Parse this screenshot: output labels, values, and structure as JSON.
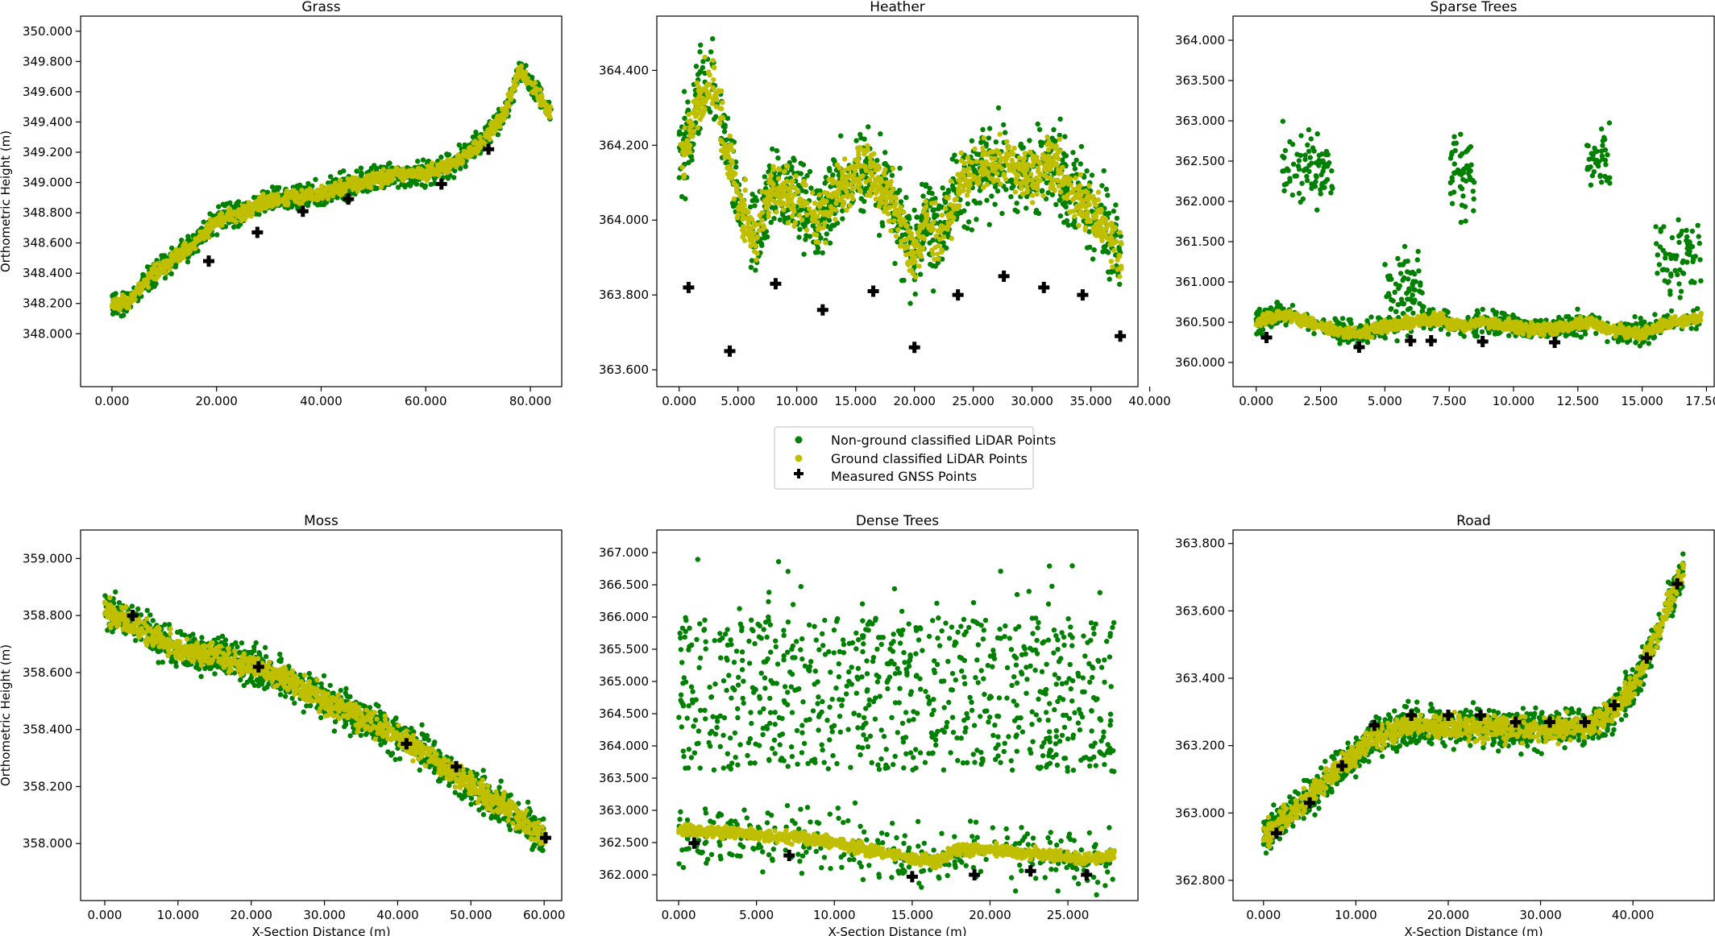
{
  "figure": {
    "legend": [
      {
        "label": "Non-ground classified LiDAR Points",
        "color": "#008000",
        "marker": "dot"
      },
      {
        "label": "Ground classified LiDAR Points",
        "color": "#bfbf00",
        "marker": "dot"
      },
      {
        "label": "Measured GNSS Points",
        "color": "#000000",
        "marker": "plus"
      }
    ]
  },
  "chart_data": [
    {
      "type": "scatter",
      "title": "Grass",
      "xlabel": "",
      "ylabel": "Orthometric Height (m)",
      "xlim": [
        -6,
        86
      ],
      "ylim": [
        347.65,
        350.1
      ],
      "xticks": [
        0,
        20,
        40,
        60,
        80
      ],
      "xtick_labels": [
        "0.000",
        "20.000",
        "40.000",
        "60.000",
        "80.000"
      ],
      "yticks": [
        348.0,
        348.2,
        348.4,
        348.6,
        348.8,
        349.0,
        349.2,
        349.4,
        349.6,
        349.8,
        350.0
      ],
      "ytick_labels": [
        "348.000",
        "348.200",
        "348.400",
        "348.600",
        "348.800",
        "349.000",
        "349.200",
        "349.400",
        "349.600",
        "349.800",
        "350.000"
      ],
      "ground_profile": [
        [
          0,
          348.2
        ],
        [
          3,
          348.2
        ],
        [
          8,
          348.4
        ],
        [
          12,
          348.5
        ],
        [
          16,
          348.6
        ],
        [
          20,
          348.75
        ],
        [
          25,
          348.8
        ],
        [
          30,
          348.88
        ],
        [
          35,
          348.9
        ],
        [
          40,
          348.92
        ],
        [
          45,
          348.98
        ],
        [
          50,
          349.02
        ],
        [
          55,
          349.05
        ],
        [
          60,
          349.06
        ],
        [
          65,
          349.12
        ],
        [
          70,
          349.25
        ],
        [
          75,
          349.45
        ],
        [
          78,
          349.75
        ],
        [
          82,
          349.55
        ],
        [
          84,
          349.45
        ]
      ],
      "ground_spread": 0.08,
      "nonground_spread": 0.14,
      "gnss_points": [
        [
          18.5,
          348.48
        ],
        [
          27.8,
          348.67
        ],
        [
          36.5,
          348.81
        ],
        [
          45.2,
          348.89
        ],
        [
          63,
          348.99
        ],
        [
          72,
          349.22
        ]
      ]
    },
    {
      "type": "scatter",
      "title": "Heather",
      "xlabel": "",
      "ylabel": "",
      "xlim": [
        -1.9,
        39.0
      ],
      "ylim": [
        363.555,
        364.545
      ],
      "xticks": [
        0,
        5,
        10,
        15,
        20,
        25,
        30,
        35,
        40
      ],
      "xtick_labels": [
        "0.000",
        "5.000",
        "10.000",
        "15.000",
        "20.000",
        "25.000",
        "30.000",
        "35.000",
        "40.000"
      ],
      "yticks": [
        363.6,
        363.8,
        364.0,
        364.2,
        364.4
      ],
      "ytick_labels": [
        "363.600",
        "363.800",
        "364.000",
        "364.200",
        "364.400"
      ],
      "ground_profile": [
        [
          0,
          364.15
        ],
        [
          1.5,
          364.3
        ],
        [
          2.8,
          364.38
        ],
        [
          4,
          364.2
        ],
        [
          5,
          364.05
        ],
        [
          6.5,
          363.95
        ],
        [
          8,
          364.1
        ],
        [
          10,
          364.05
        ],
        [
          12,
          364.0
        ],
        [
          14,
          364.1
        ],
        [
          16,
          364.15
        ],
        [
          18,
          364.05
        ],
        [
          20,
          363.9
        ],
        [
          21,
          364.0
        ],
        [
          22,
          363.95
        ],
        [
          24,
          364.1
        ],
        [
          26,
          364.15
        ],
        [
          28,
          364.15
        ],
        [
          30,
          364.12
        ],
        [
          32,
          364.15
        ],
        [
          34,
          364.05
        ],
        [
          36,
          364.0
        ],
        [
          37.6,
          363.9
        ]
      ],
      "ground_spread": 0.12,
      "nonground_spread": 0.2,
      "gnss_points": [
        [
          0.8,
          363.82
        ],
        [
          4.3,
          363.65
        ],
        [
          8.2,
          363.83
        ],
        [
          12.2,
          363.76
        ],
        [
          16.5,
          363.81
        ],
        [
          20,
          363.66
        ],
        [
          23.7,
          363.8
        ],
        [
          27.6,
          363.85
        ],
        [
          31,
          363.82
        ],
        [
          34.3,
          363.8
        ],
        [
          37.5,
          363.69
        ]
      ]
    },
    {
      "type": "scatter",
      "title": "Sparse Trees",
      "xlabel": "",
      "ylabel": "",
      "xlim": [
        -0.9,
        17.8
      ],
      "ylim": [
        359.7,
        364.3
      ],
      "xticks": [
        0,
        2.5,
        5,
        7.5,
        10,
        12.5,
        15,
        17.5
      ],
      "xtick_labels": [
        "0.000",
        "2.500",
        "5.000",
        "7.500",
        "10.000",
        "12.500",
        "15.000",
        "17.500"
      ],
      "yticks": [
        360.0,
        360.5,
        361.0,
        361.5,
        362.0,
        362.5,
        363.0,
        363.5,
        364.0
      ],
      "ytick_labels": [
        "360.000",
        "360.500",
        "361.000",
        "361.500",
        "362.000",
        "362.500",
        "363.000",
        "363.500",
        "364.000"
      ],
      "ground_profile": [
        [
          0,
          360.5
        ],
        [
          1,
          360.6
        ],
        [
          2,
          360.5
        ],
        [
          3,
          360.4
        ],
        [
          4,
          360.35
        ],
        [
          5,
          360.45
        ],
        [
          6,
          360.5
        ],
        [
          7,
          360.55
        ],
        [
          8,
          360.45
        ],
        [
          9,
          360.5
        ],
        [
          10,
          360.45
        ],
        [
          11,
          360.4
        ],
        [
          12,
          360.45
        ],
        [
          13,
          360.5
        ],
        [
          14,
          360.4
        ],
        [
          15,
          360.35
        ],
        [
          16,
          360.5
        ],
        [
          17.3,
          360.55
        ]
      ],
      "ground_spread": 0.12,
      "nonground_spread": 0.25,
      "canopy_bumps": [
        [
          1,
          3,
          362.4
        ],
        [
          5,
          6.5,
          360.9
        ],
        [
          7.5,
          8.5,
          362.3
        ],
        [
          12.8,
          13.8,
          362.5
        ],
        [
          15.5,
          17.4,
          361.3
        ]
      ],
      "gnss_points": [
        [
          0.4,
          360.31
        ],
        [
          4,
          360.19
        ],
        [
          6,
          360.27
        ],
        [
          6.8,
          360.27
        ],
        [
          8.8,
          360.26
        ],
        [
          11.6,
          360.25
        ]
      ]
    },
    {
      "type": "scatter",
      "title": "Moss",
      "xlabel": "X-Section Distance (m)",
      "ylabel": "Orthometric Height (m)",
      "xlim": [
        -3.3,
        62.4
      ],
      "ylim": [
        357.8,
        359.1
      ],
      "xticks": [
        0,
        10,
        20,
        30,
        40,
        50,
        60
      ],
      "xtick_labels": [
        "0.000",
        "10.000",
        "20.000",
        "30.000",
        "40.000",
        "50.000",
        "60.000"
      ],
      "yticks": [
        358.0,
        358.2,
        358.4,
        358.6,
        358.8,
        359.0
      ],
      "ytick_labels": [
        "358.000",
        "358.200",
        "358.400",
        "358.600",
        "358.800",
        "359.000"
      ],
      "ground_profile": [
        [
          0,
          358.82
        ],
        [
          5,
          358.75
        ],
        [
          10,
          358.68
        ],
        [
          15,
          358.66
        ],
        [
          20,
          358.62
        ],
        [
          25,
          358.58
        ],
        [
          30,
          358.5
        ],
        [
          35,
          358.44
        ],
        [
          40,
          358.38
        ],
        [
          45,
          358.3
        ],
        [
          50,
          358.2
        ],
        [
          55,
          358.12
        ],
        [
          60,
          358.02
        ]
      ],
      "ground_spread": 0.07,
      "nonground_spread": 0.12,
      "gnss_points": [
        [
          3.8,
          358.8
        ],
        [
          21,
          358.62
        ],
        [
          41.2,
          358.35
        ],
        [
          48,
          358.27
        ],
        [
          60.2,
          358.02
        ]
      ]
    },
    {
      "type": "scatter",
      "title": "Dense Trees",
      "xlabel": "X-Section Distance (m)",
      "ylabel": "",
      "xlim": [
        -1.4,
        29.5
      ],
      "ylim": [
        361.6,
        367.35
      ],
      "xticks": [
        0,
        5,
        10,
        15,
        20,
        25
      ],
      "xtick_labels": [
        "0.000",
        "5.000",
        "10.000",
        "15.000",
        "20.000",
        "25.000"
      ],
      "yticks": [
        362.0,
        362.5,
        363.0,
        363.5,
        364.0,
        364.5,
        365.0,
        365.5,
        366.0,
        366.5,
        367.0
      ],
      "ytick_labels": [
        "362.000",
        "362.500",
        "363.000",
        "363.500",
        "364.000",
        "364.500",
        "365.000",
        "365.500",
        "366.000",
        "366.500",
        "367.000"
      ],
      "ground_profile": [
        [
          0,
          362.7
        ],
        [
          3,
          362.65
        ],
        [
          6,
          362.6
        ],
        [
          9,
          362.55
        ],
        [
          12,
          362.4
        ],
        [
          15,
          362.25
        ],
        [
          16.5,
          362.2
        ],
        [
          18,
          362.4
        ],
        [
          20,
          362.4
        ],
        [
          22,
          362.35
        ],
        [
          24,
          362.3
        ],
        [
          26,
          362.25
        ],
        [
          28,
          362.3
        ]
      ],
      "ground_spread": 0.15,
      "nonground_spread": 0.9,
      "canopy_band": [
        363.6,
        366.0
      ],
      "gnss_points": [
        [
          1,
          362.49
        ],
        [
          7.1,
          362.3
        ],
        [
          15,
          361.97
        ],
        [
          19,
          362.0
        ],
        [
          22.6,
          362.06
        ],
        [
          26.2,
          362.0
        ]
      ]
    },
    {
      "type": "scatter",
      "title": "Road",
      "xlabel": "X-Section Distance (m)",
      "ylabel": "",
      "xlim": [
        -3.3,
        48.8
      ],
      "ylim": [
        362.74,
        363.84
      ],
      "xticks": [
        0,
        10,
        20,
        30,
        40
      ],
      "xtick_labels": [
        "0.000",
        "10.000",
        "20.000",
        "30.000",
        "40.000"
      ],
      "yticks": [
        362.8,
        363.0,
        363.2,
        363.4,
        363.6,
        363.8
      ],
      "ytick_labels": [
        "362.800",
        "363.000",
        "363.200",
        "363.400",
        "363.600",
        "363.800"
      ],
      "ground_profile": [
        [
          0,
          362.93
        ],
        [
          4,
          363.02
        ],
        [
          8,
          363.13
        ],
        [
          12,
          363.22
        ],
        [
          16,
          363.26
        ],
        [
          20,
          363.26
        ],
        [
          25,
          363.25
        ],
        [
          30,
          363.25
        ],
        [
          35,
          363.26
        ],
        [
          38,
          363.3
        ],
        [
          41,
          363.42
        ],
        [
          44,
          363.63
        ],
        [
          45.5,
          363.72
        ]
      ],
      "ground_spread": 0.06,
      "nonground_spread": 0.1,
      "gnss_points": [
        [
          1.4,
          362.94
        ],
        [
          5,
          363.03
        ],
        [
          8.5,
          363.14
        ],
        [
          12,
          363.26
        ],
        [
          16,
          363.29
        ],
        [
          20,
          363.29
        ],
        [
          23.5,
          363.29
        ],
        [
          27.3,
          363.27
        ],
        [
          31,
          363.27
        ],
        [
          34.8,
          363.27
        ],
        [
          38,
          363.32
        ],
        [
          41.5,
          363.46
        ],
        [
          44.8,
          363.68
        ]
      ]
    }
  ]
}
